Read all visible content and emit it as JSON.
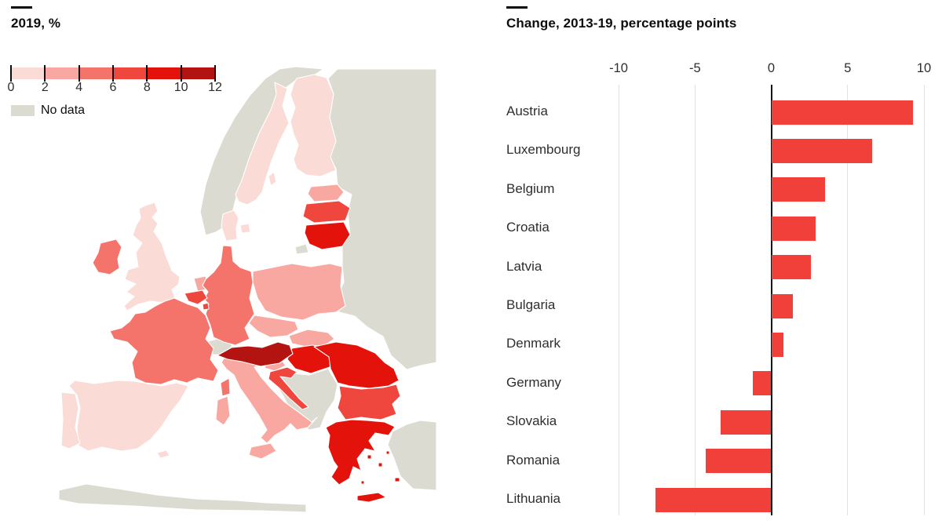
{
  "left_panel": {
    "title": "2019, %",
    "legend": {
      "scale_labels": [
        "0",
        "2",
        "4",
        "6",
        "8",
        "10",
        "12"
      ],
      "scale_colors": [
        "#fadbd6",
        "#f8a8a1",
        "#f4746c",
        "#ef463e",
        "#e3120b",
        "#b31412"
      ],
      "no_data_label": "No data",
      "no_data_color": "#dcdbd2"
    },
    "map_colors": {
      "sea": "#ffffff",
      "no_data": "#dcdbd2",
      "sweden": "#fadbd6",
      "finland": "#fadbd6",
      "denmark": "#fadbd6",
      "united_kingdom": "#fadbd6",
      "spain": "#fadbd6",
      "portugal": "#fadbd6",
      "estonia": "#f8a8a1",
      "netherlands": "#f8a8a1",
      "italy": "#f8a8a1",
      "poland": "#f8a8a1",
      "czechia": "#f8a8a1",
      "slovakia": "#f8a8a1",
      "slovenia": "#f8a8a1",
      "germany": "#f4746c",
      "france": "#f4746c",
      "ireland": "#f4746c",
      "latvia": "#ef463e",
      "belgium": "#ef463e",
      "luxembourg": "#ef463e",
      "croatia": "#ef463e",
      "bulgaria": "#ef463e",
      "lithuania": "#e3120b",
      "hungary": "#e3120b",
      "romania": "#e3120b",
      "greece": "#e3120b",
      "austria": "#b31412"
    }
  },
  "right_panel": {
    "title": "Change, 2013-19, percentage points"
  },
  "chart_data": [
    {
      "type": "choropleth",
      "title": "2019, %",
      "unit": "%",
      "legend": {
        "breaks": [
          0,
          2,
          4,
          6,
          8,
          10,
          12
        ],
        "colors": [
          "#fadbd6",
          "#f8a8a1",
          "#f4746c",
          "#ef463e",
          "#e3120b",
          "#b31412"
        ],
        "no_data_label": "No data",
        "no_data_color": "#dcdbd2"
      },
      "countries": {
        "Austria": "10-12",
        "Hungary": "8-10",
        "Romania": "8-10",
        "Greece": "8-10",
        "Lithuania": "8-10",
        "Latvia": "6-8",
        "Belgium": "6-8",
        "Luxembourg": "6-8",
        "Croatia": "6-8",
        "Bulgaria": "6-8",
        "Germany": "4-6",
        "France": "4-6",
        "Ireland": "4-6",
        "Estonia": "2-4",
        "Netherlands": "2-4",
        "Italy": "2-4",
        "Poland": "2-4",
        "Czech Republic": "2-4",
        "Slovakia": "2-4",
        "Slovenia": "2-4",
        "Sweden": "0-2",
        "Finland": "0-2",
        "Denmark": "0-2",
        "United Kingdom": "0-2",
        "Spain": "0-2",
        "Portugal": "0-2",
        "Norway": "no data",
        "Switzerland": "no data",
        "Serbia": "no data",
        "Bosnia": "no data",
        "Albania": "no data",
        "North Macedonia": "no data",
        "Moldova": "no data",
        "Ukraine": "no data",
        "Belarus": "no data",
        "Russia": "no data",
        "Turkey": "no data"
      }
    },
    {
      "type": "bar",
      "orientation": "horizontal",
      "title": "Change, 2013-19, percentage points",
      "categories": [
        "Austria",
        "Luxembourg",
        "Belgium",
        "Croatia",
        "Latvia",
        "Bulgaria",
        "Denmark",
        "Germany",
        "Slovakia",
        "Romania",
        "Lithuania"
      ],
      "values": [
        9.3,
        6.6,
        3.5,
        2.9,
        2.6,
        1.4,
        0.8,
        -1.2,
        -3.3,
        -4.3,
        -7.6
      ],
      "xlim": [
        -10,
        10
      ],
      "x_ticks": [
        -10,
        -5,
        0,
        5,
        10
      ],
      "bar_color": "#f1403a",
      "grid": "vertical",
      "zero_line_color": "#141414"
    }
  ]
}
